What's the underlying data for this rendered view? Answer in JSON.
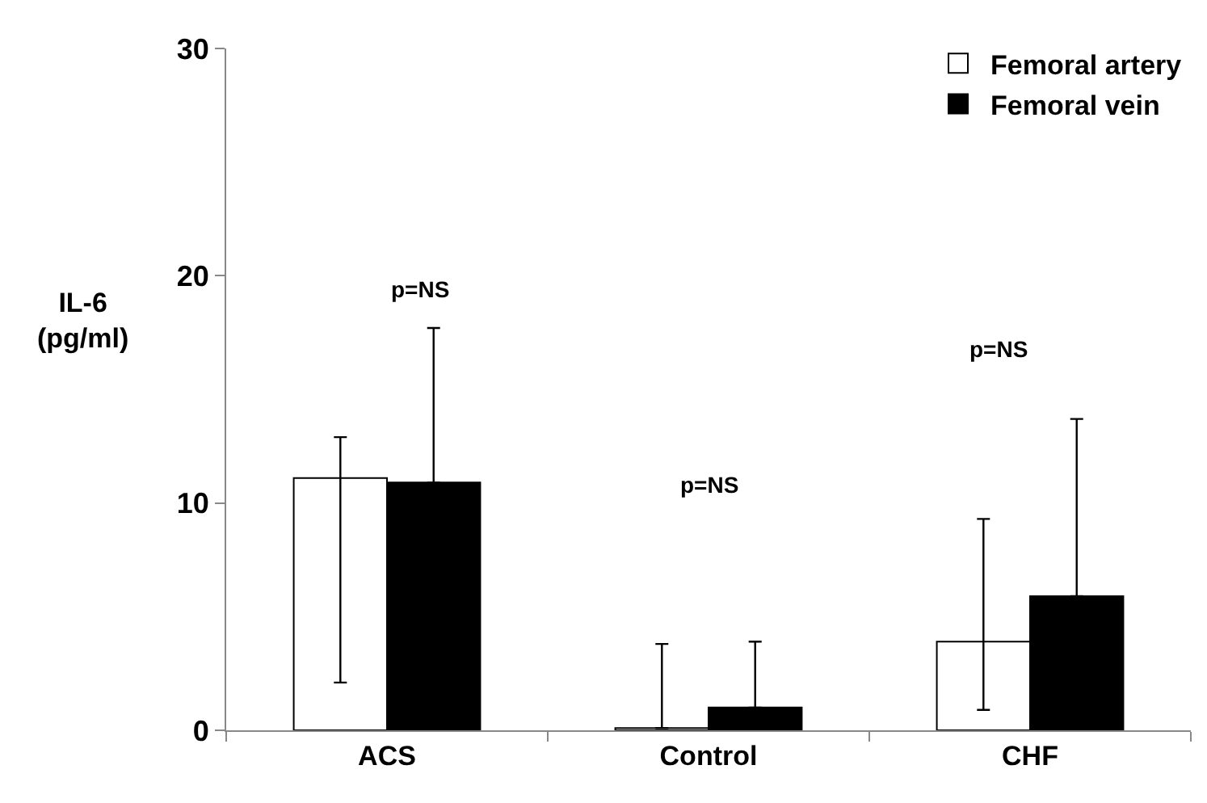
{
  "chart_data": {
    "type": "bar",
    "ylabel": "IL-6\n(pg/ml)",
    "categories": [
      "ACS",
      "Control",
      "CHF"
    ],
    "series": [
      {
        "name": "Femoral artery",
        "color": "#ffffff",
        "values": [
          11.1,
          0.1,
          3.9
        ],
        "errors": [
          [
            2.1,
            12.9
          ],
          [
            0.1,
            3.8
          ],
          [
            0.9,
            9.3
          ]
        ]
      },
      {
        "name": "Femoral vein",
        "color": "#000000",
        "values": [
          10.9,
          1.0,
          5.9
        ],
        "errors": [
          [
            10.9,
            17.7
          ],
          [
            1.0,
            3.9
          ],
          [
            5.9,
            13.7
          ]
        ]
      }
    ],
    "ylim": [
      0,
      30
    ],
    "yticks": [
      0,
      10,
      20,
      30
    ],
    "grid": false,
    "legend": "top right",
    "annotations": [
      "p=NS",
      "p=NS",
      "p=NS"
    ]
  }
}
